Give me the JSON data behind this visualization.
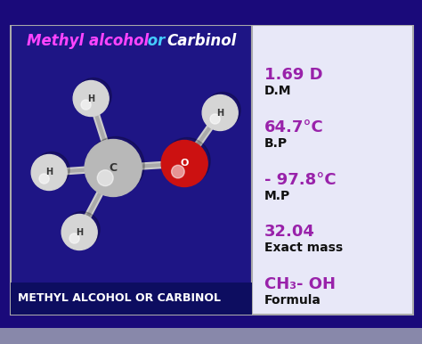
{
  "bg_outer": "#1a0a7a",
  "box_bg_left": "#1e1585",
  "box_bg_right": "#f0f0ff",
  "box_border": "#aaaaaa",
  "title_text": "METHYL ALCOHOL OR CARBINOL",
  "title_color": "#ffffff",
  "title_bg": "#0d0d60",
  "formula_label": "Formula",
  "formula_value": "CH₃- OH",
  "formula_color": "#9922aa",
  "exact_mass_label": "Exact mass",
  "exact_mass_value": "32.04",
  "exact_mass_color": "#9922aa",
  "mp_label": "M.P",
  "mp_value": "- 97.8°C",
  "mp_color": "#9922aa",
  "bp_label": "B.P",
  "bp_value": "64.7°C",
  "bp_color": "#9922aa",
  "dm_label": "D.M",
  "dm_value": "1.69 D",
  "dm_color": "#9922aa",
  "bottom_text1": "Methyl alcohol",
  "bottom_text1_color": "#ff44ff",
  "bottom_text2": " or ",
  "bottom_text2_color": "#44ccff",
  "bottom_text3": "Carbinol",
  "bottom_text3_color": "#ffffff",
  "label_color": "#111111",
  "right_bg": "#e8e8f8",
  "figsize": [
    4.74,
    3.86
  ],
  "dpi": 100
}
